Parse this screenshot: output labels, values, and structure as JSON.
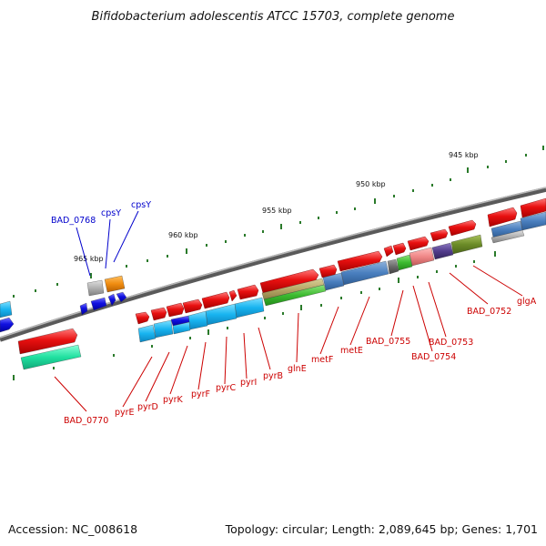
{
  "title": "Bifidobacterium adolescentis ATCC 15703, complete genome",
  "footer": {
    "accession": "Accession: NC_008618",
    "summary": "Topology: circular; Length: 2,089,645 bp; Genes: 1,701"
  },
  "scale_labels": [
    "945 kbp",
    "950 kbp",
    "955 kbp",
    "960 kbp",
    "965 kbp"
  ],
  "gene_labels": {
    "blue": [
      "BAD_0768",
      "cpsY",
      "cpsY"
    ],
    "red": [
      "BAD_0770",
      "pyrE",
      "pyrD",
      "pyrK",
      "pyrF",
      "pyrC",
      "pyrI",
      "pyrB",
      "glnE",
      "metF",
      "metE",
      "BAD_0755",
      "BAD_0753",
      "BAD_0754",
      "BAD_0752",
      "glgA"
    ]
  },
  "colors": {
    "backbone": "#6e6e6e",
    "red_gene": "#e81010",
    "blue_gene": "#1010e0",
    "label_red": "#cc0000",
    "label_blue": "#0000cc",
    "tick": "#2a7a2a"
  }
}
